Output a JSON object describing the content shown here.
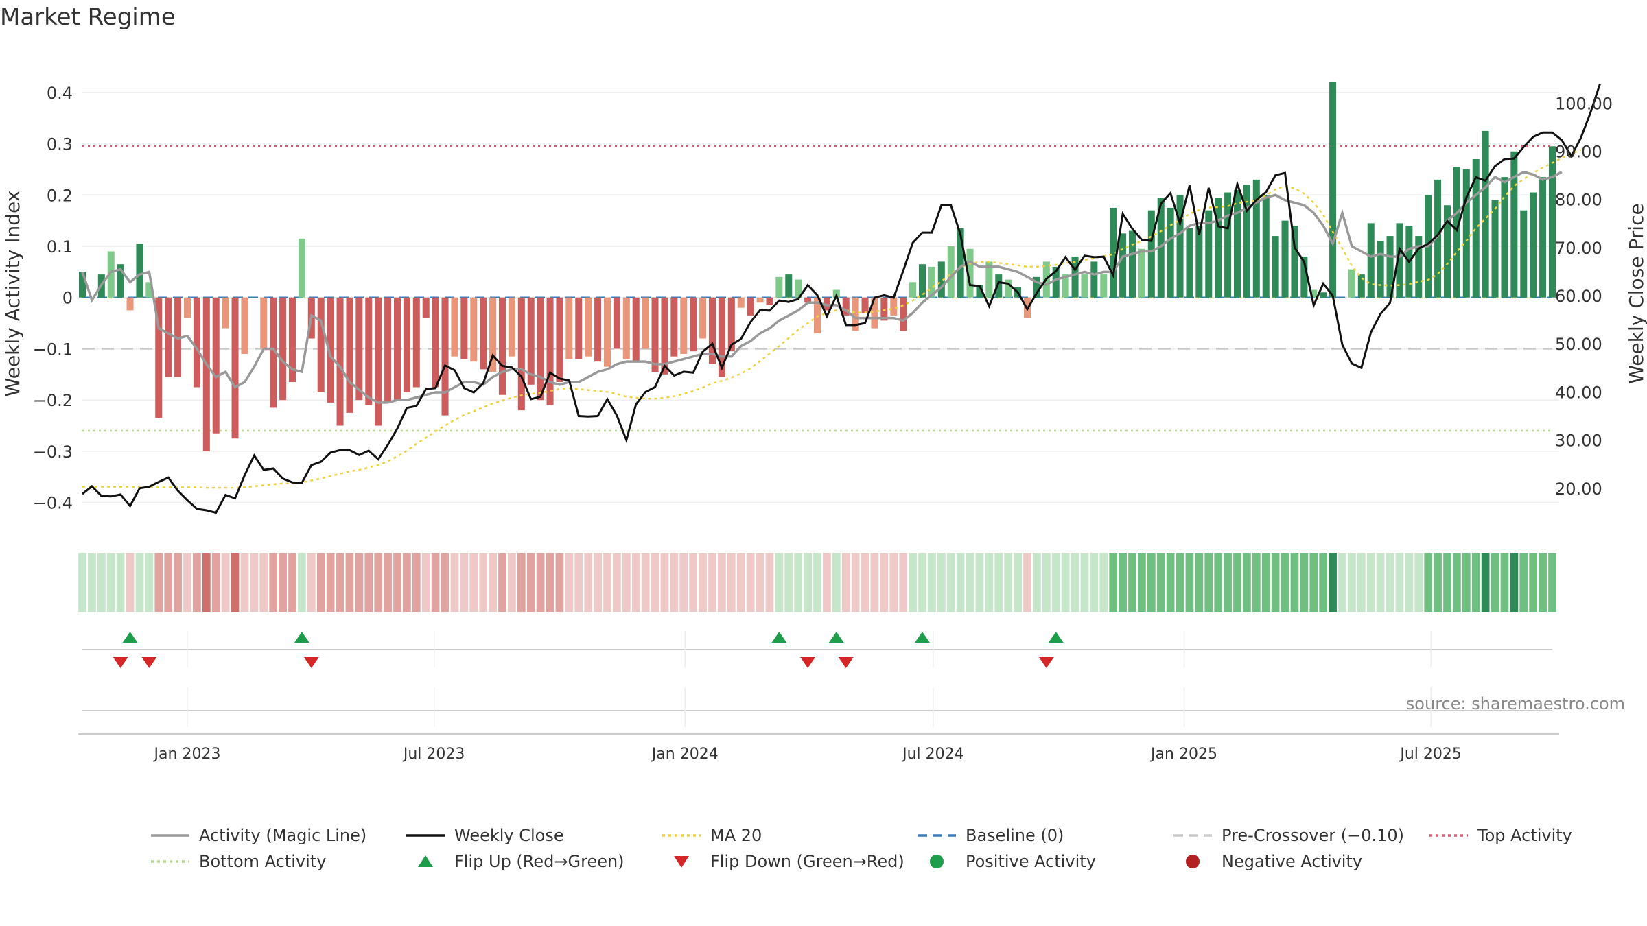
{
  "chart_data": {
    "type": "bar",
    "title": "Market Regime",
    "ylabel_left": "Weekly Activity Index",
    "ylabel_right": "Weekly Close Price",
    "source": "source: sharemaestro.com",
    "x_ticks": [
      "Jan 2023",
      "Jul 2023",
      "Jan 2024",
      "Jul 2024",
      "Jan 2025",
      "Jul 2025"
    ],
    "x_tick_dates": [
      "2023-01-01",
      "2023-07-01",
      "2024-01-01",
      "2024-07-01",
      "2025-01-01",
      "2025-07-01"
    ],
    "x_start_date": "2022-10-16",
    "x_step_days": 7,
    "y_left_ticks": [
      "0.4",
      "0.3",
      "0.2",
      "0.1",
      "0",
      "−0.1",
      "−0.2",
      "−0.3",
      "−0.4"
    ],
    "y_left_tick_values": [
      0.4,
      0.3,
      0.2,
      0.1,
      0,
      -0.1,
      -0.2,
      -0.3,
      -0.4
    ],
    "y_right_ticks": [
      "100.00",
      "90.00",
      "80.00",
      "70.00",
      "60.00",
      "50.00",
      "40.00",
      "30.00",
      "20.00"
    ],
    "y_right_tick_values": [
      100,
      90,
      80,
      70,
      60,
      50,
      40,
      30,
      20
    ],
    "ylim_left": [
      -0.45,
      0.46
    ],
    "ylim_right": [
      11.7,
      108.6
    ],
    "grid": true,
    "legend_placement": "bottom",
    "thresholds": {
      "top_activity": 0.295,
      "pre_crossover": -0.1,
      "bottom_activity": -0.26,
      "baseline": 0
    },
    "colors": {
      "strong_positive": "#2e8b57",
      "mild_positive": "#7fc98a",
      "strong_negative": "#cd5c5c",
      "mild_negative": "#e9967a",
      "magic_line": "#999999",
      "close": "#111111",
      "ma20": "#f0d23c",
      "baseline": "#3a7ab8",
      "pre_crossover": "#c8c8c8",
      "top_activity": "#e05a73",
      "bottom_activity": "#b8d98a",
      "flip_up": "#1e9e4a",
      "flip_down": "#d62728",
      "positive_activity": "#1e9e4a",
      "negative_activity": "#b22222"
    },
    "activity": [
      0.05,
      0.0,
      0.045,
      0.09,
      0.065,
      -0.025,
      0.105,
      0.03,
      -0.235,
      -0.155,
      -0.155,
      -0.04,
      -0.175,
      -0.3,
      -0.265,
      -0.06,
      -0.275,
      -0.11,
      0.0,
      -0.1,
      -0.215,
      -0.2,
      -0.165,
      0.115,
      -0.08,
      -0.185,
      -0.205,
      -0.25,
      -0.225,
      -0.2,
      -0.21,
      -0.25,
      -0.205,
      -0.2,
      -0.185,
      -0.175,
      -0.04,
      -0.175,
      -0.23,
      -0.115,
      -0.12,
      -0.125,
      -0.14,
      -0.145,
      -0.19,
      -0.115,
      -0.22,
      -0.17,
      -0.2,
      -0.21,
      -0.165,
      -0.12,
      -0.12,
      -0.115,
      -0.125,
      -0.135,
      -0.1,
      -0.12,
      -0.125,
      -0.1,
      -0.145,
      -0.15,
      -0.115,
      -0.11,
      -0.105,
      -0.08,
      -0.13,
      -0.155,
      -0.105,
      -0.02,
      -0.035,
      -0.01,
      -0.015,
      0.04,
      0.045,
      0.035,
      -0.01,
      -0.07,
      -0.025,
      0.015,
      -0.035,
      -0.065,
      -0.03,
      -0.06,
      -0.045,
      -0.035,
      -0.065,
      0.03,
      0.065,
      0.06,
      0.07,
      0.1,
      0.135,
      0.095,
      0.025,
      0.07,
      0.045,
      0.035,
      0.02,
      -0.04,
      0.04,
      0.07,
      0.06,
      0.045,
      0.08,
      0.045,
      0.07,
      0.045,
      0.175,
      0.125,
      0.13,
      0.095,
      0.17,
      0.195,
      0.175,
      0.2,
      0.135,
      0.14,
      0.17,
      0.195,
      0.205,
      0.21,
      0.22,
      0.23,
      0.2,
      0.12,
      0.15,
      0.14,
      0.08,
      0.015,
      0.01,
      0.42,
      0.0,
      0.055,
      0.045,
      0.145,
      0.11,
      0.12,
      0.145,
      0.14,
      0.12,
      0.2,
      0.23,
      0.18,
      0.255,
      0.25,
      0.27,
      0.325,
      0.19,
      0.235,
      0.285,
      0.17,
      0.205,
      0.235,
      0.295
    ],
    "close": [
      18.8,
      20.4,
      18.4,
      18.3,
      18.7,
      16.3,
      20.0,
      20.3,
      21.3,
      22.2,
      19.5,
      17.5,
      15.7,
      15.4,
      14.9,
      18.6,
      17.9,
      22.7,
      26.8,
      23.8,
      24.1,
      22.0,
      21.2,
      21.1,
      24.8,
      25.5,
      27.4,
      27.9,
      27.9,
      26.9,
      27.8,
      26.0,
      29.0,
      32.4,
      36.7,
      37.1,
      40.6,
      40.8,
      45.5,
      44.5,
      40.8,
      39.9,
      41.8,
      47.6,
      45.4,
      45.1,
      43.2,
      38.5,
      39.0,
      44.0,
      42.8,
      42.4,
      35.0,
      34.9,
      35.0,
      38.5,
      35.1,
      30.0,
      37.4,
      40.0,
      41.0,
      45.4,
      43.4,
      44.2,
      44.0,
      48.4,
      50.0,
      45.0,
      49.8,
      51.0,
      54.5,
      57.0,
      56.9,
      59.0,
      58.7,
      59.3,
      62.2,
      60.1,
      55.7,
      60.0,
      53.9,
      53.9,
      54.3,
      59.6,
      60.1,
      59.6,
      65.2,
      71.0,
      73.1,
      73.1,
      78.8,
      78.8,
      72.7,
      62.2,
      62.0,
      57.8,
      62.8,
      62.5,
      60.7,
      57.2,
      60.6,
      63.5,
      65.1,
      68.0,
      65.4,
      68.3,
      68.0,
      68.1,
      64.2,
      77.0,
      73.9,
      71.6,
      71.4,
      79.1,
      81.3,
      75.0,
      82.9,
      72.6,
      82.4,
      74.4,
      74.0,
      83.2,
      77.6,
      79.9,
      81.5,
      85.0,
      85.5,
      70.0,
      67.0,
      58.0,
      62.5,
      60.0,
      49.8,
      45.9,
      45.0,
      52.4,
      56.2,
      58.5,
      69.7,
      67.0,
      69.8,
      70.8,
      72.6,
      75.5,
      73.6,
      80.4,
      84.6,
      83.9,
      86.9,
      88.4,
      88.5,
      90.9,
      93.0,
      93.9,
      93.9,
      92.3,
      89.0,
      92.8,
      98.0,
      104.0
    ],
    "magic_line": [
      0.05,
      -0.005,
      0.025,
      0.05,
      0.055,
      0.03,
      0.045,
      0.05,
      -0.06,
      -0.07,
      -0.08,
      -0.075,
      -0.1,
      -0.13,
      -0.155,
      -0.145,
      -0.175,
      -0.165,
      -0.135,
      -0.1,
      -0.1,
      -0.125,
      -0.14,
      -0.145,
      -0.035,
      -0.045,
      -0.115,
      -0.135,
      -0.165,
      -0.18,
      -0.195,
      -0.205,
      -0.205,
      -0.2,
      -0.2,
      -0.195,
      -0.19,
      -0.185,
      -0.185,
      -0.175,
      -0.165,
      -0.165,
      -0.17,
      -0.155,
      -0.145,
      -0.14,
      -0.14,
      -0.15,
      -0.155,
      -0.165,
      -0.17,
      -0.165,
      -0.165,
      -0.155,
      -0.145,
      -0.14,
      -0.13,
      -0.125,
      -0.125,
      -0.125,
      -0.13,
      -0.13,
      -0.125,
      -0.12,
      -0.115,
      -0.11,
      -0.11,
      -0.115,
      -0.115,
      -0.095,
      -0.085,
      -0.07,
      -0.06,
      -0.045,
      -0.035,
      -0.025,
      -0.01,
      -0.01,
      -0.015,
      -0.015,
      -0.025,
      -0.04,
      -0.04,
      -0.04,
      -0.04,
      -0.04,
      -0.045,
      -0.03,
      -0.01,
      0.005,
      0.02,
      0.04,
      0.06,
      0.07,
      0.06,
      0.06,
      0.06,
      0.055,
      0.05,
      0.04,
      0.03,
      0.025,
      0.035,
      0.04,
      0.045,
      0.05,
      0.045,
      0.05,
      0.05,
      0.08,
      0.085,
      0.09,
      0.09,
      0.1,
      0.115,
      0.125,
      0.14,
      0.145,
      0.145,
      0.15,
      0.16,
      0.165,
      0.175,
      0.185,
      0.195,
      0.2,
      0.19,
      0.185,
      0.18,
      0.165,
      0.14,
      0.105,
      0.165,
      0.1,
      0.09,
      0.08,
      0.085,
      0.08,
      0.08,
      0.095,
      0.1,
      0.1,
      0.12,
      0.15,
      0.165,
      0.185,
      0.2,
      0.215,
      0.235,
      0.225,
      0.235,
      0.245,
      0.24,
      0.23,
      0.235,
      0.245
    ],
    "ma20": [
      20.3,
      20.3,
      20.3,
      20.3,
      20.3,
      20.3,
      20.2,
      20.2,
      20.2,
      20.2,
      20.2,
      20.2,
      20.2,
      20.1,
      20.1,
      20.1,
      20.1,
      20.2,
      20.4,
      20.6,
      20.8,
      21.0,
      21.0,
      21.2,
      21.6,
      22.0,
      22.5,
      23.0,
      23.5,
      23.8,
      24.3,
      24.8,
      25.6,
      26.6,
      27.8,
      29.2,
      30.5,
      31.8,
      33.0,
      34.2,
      35.2,
      36.0,
      36.8,
      37.6,
      38.2,
      38.8,
      39.3,
      39.6,
      39.8,
      40.2,
      40.6,
      40.8,
      40.6,
      40.4,
      40.2,
      40.0,
      39.6,
      39.0,
      38.8,
      38.6,
      38.6,
      38.8,
      39.1,
      39.6,
      40.2,
      40.9,
      41.8,
      42.3,
      43.0,
      43.8,
      44.9,
      46.4,
      48.0,
      49.5,
      51.2,
      52.9,
      54.3,
      55.7,
      56.4,
      57.0,
      57.0,
      56.5,
      56.5,
      56.7,
      57.0,
      57.3,
      58.0,
      59.0,
      60.2,
      61.6,
      63.0,
      64.5,
      65.8,
      66.7,
      67.0,
      67.0,
      66.8,
      66.6,
      66.3,
      66.0,
      66.0,
      66.2,
      66.4,
      66.8,
      67.0,
      67.4,
      67.8,
      68.2,
      68.6,
      69.7,
      70.6,
      71.4,
      72.3,
      73.4,
      74.6,
      75.7,
      77.0,
      77.8,
      78.3,
      78.4,
      78.6,
      79.2,
      79.5,
      79.8,
      80.8,
      82.1,
      82.8,
      82.3,
      81.2,
      79.3,
      76.8,
      73.3,
      69.8,
      66.2,
      63.7,
      62.4,
      62.2,
      62.1,
      62.2,
      62.4,
      62.9,
      63.3,
      64.5,
      66.6,
      69.1,
      71.4,
      74.0,
      76.0,
      78.0,
      80.6,
      82.8,
      84.2,
      85.5,
      86.6,
      87.6,
      88.6,
      89.5,
      90.3
    ],
    "regime_strip": [
      1,
      1,
      1,
      1,
      1,
      -1,
      1,
      1,
      -2,
      -2,
      -2,
      -1,
      -2,
      -3,
      -2,
      -1,
      -3,
      -1,
      -1,
      -1,
      -2,
      -2,
      -2,
      1,
      -1,
      -2,
      -2,
      -2,
      -2,
      -2,
      -2,
      -2,
      -2,
      -2,
      -2,
      -2,
      -1,
      -2,
      -2,
      -1,
      -1,
      -1,
      -1,
      -1,
      -2,
      -1,
      -2,
      -2,
      -2,
      -2,
      -2,
      -1,
      -1,
      -1,
      -1,
      -1,
      -1,
      -1,
      -1,
      -1,
      -1,
      -1,
      -1,
      -1,
      -1,
      -1,
      -1,
      -1,
      -1,
      -1,
      -1,
      -1,
      -1,
      1,
      1,
      1,
      1,
      1,
      -1,
      1,
      -1,
      -1,
      -1,
      -1,
      -1,
      -1,
      -1,
      1,
      1,
      1,
      1,
      1,
      1,
      1,
      1,
      1,
      1,
      1,
      1,
      -1,
      1,
      1,
      1,
      1,
      1,
      1,
      1,
      1,
      2,
      2,
      2,
      2,
      2,
      2,
      2,
      2,
      2,
      2,
      2,
      2,
      2,
      2,
      2,
      2,
      2,
      2,
      2,
      2,
      2,
      2,
      2,
      3,
      1,
      1,
      1,
      1,
      1,
      1,
      1,
      1,
      1,
      2,
      2,
      2,
      2,
      2,
      2,
      3,
      2,
      2,
      3,
      2,
      2,
      2,
      2
    ],
    "flip_up_index": [
      5,
      23,
      73,
      79,
      88,
      102
    ],
    "flip_down_index": [
      4,
      7,
      24,
      76,
      80,
      101
    ],
    "legend": [
      {
        "label": "Activity (Magic Line)",
        "marker": "line-solid-gray"
      },
      {
        "label": "Weekly Close",
        "marker": "line-solid-black"
      },
      {
        "label": "MA 20",
        "marker": "line-dotted-yellow"
      },
      {
        "label": "Baseline (0)",
        "marker": "line-dashed-blue"
      },
      {
        "label": "Pre-Crossover (−0.10)",
        "marker": "line-dashed-lightgray"
      },
      {
        "label": "Top Activity",
        "marker": "line-dotted-pink"
      },
      {
        "label": "Bottom Activity",
        "marker": "line-dotted-lightgreen"
      },
      {
        "label": "Flip Up (Red→Green)",
        "marker": "triangle-up-green"
      },
      {
        "label": "Flip Down (Green→Red)",
        "marker": "triangle-down-red"
      },
      {
        "label": "Positive Activity",
        "marker": "dot-green"
      },
      {
        "label": "Negative Activity",
        "marker": "dot-red"
      }
    ]
  }
}
